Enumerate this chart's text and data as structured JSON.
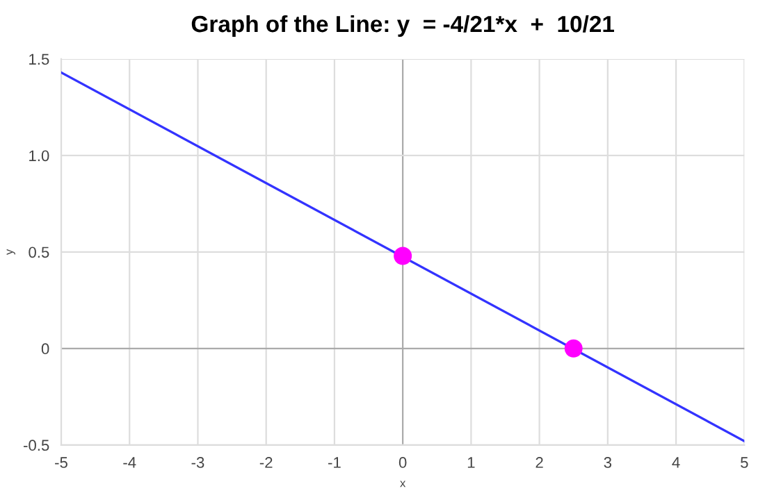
{
  "chart_data": {
    "type": "line",
    "title": "Graph of the Line: y  = -4/21*x  +  10/21",
    "xlabel": "x",
    "ylabel": "y",
    "series": [
      {
        "color": "#3333ff",
        "x": [
          -5,
          5
        ],
        "values": [
          1.43,
          -0.48
        ]
      },
      {
        "type": "scatter",
        "color": "#ff00ff",
        "x": [
          0,
          2.5
        ],
        "values": [
          0.48,
          0
        ]
      }
    ],
    "xlim": [
      -5,
      5
    ],
    "xticks": [
      -5,
      -4,
      -3,
      -2,
      -1,
      0,
      1,
      2,
      3,
      4,
      5
    ],
    "ylim": [
      -0.5,
      1.5
    ],
    "yticks": [
      {
        "value": -0.5,
        "label": "-0.5"
      },
      0,
      {
        "value": 0.5,
        "label": "0.5"
      },
      {
        "value": 1,
        "label": "1.0"
      },
      {
        "value": 1.5,
        "label": "1.5"
      }
    ],
    "grid": true
  }
}
